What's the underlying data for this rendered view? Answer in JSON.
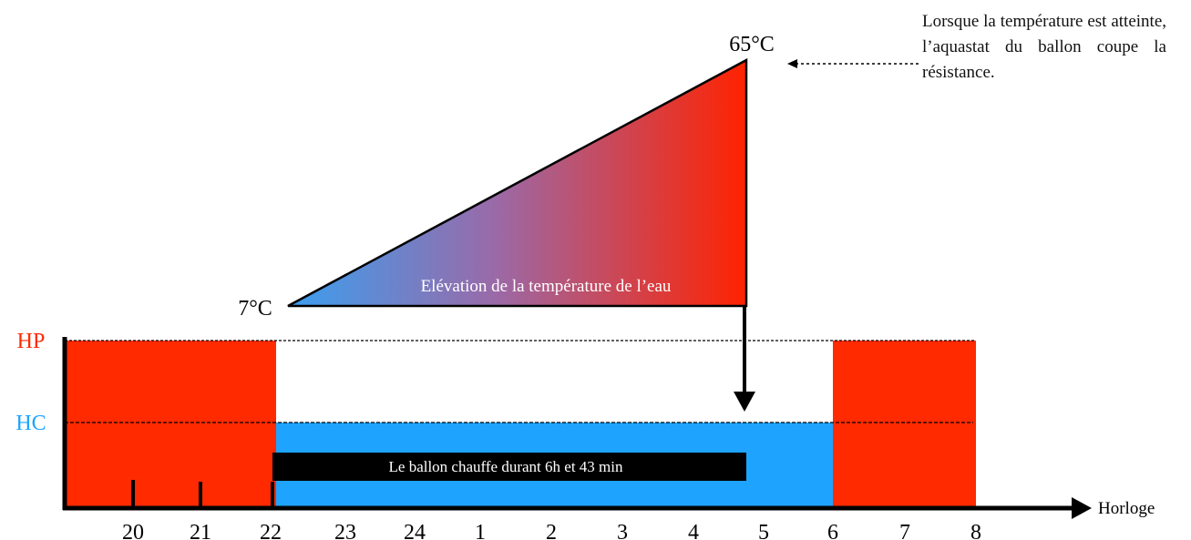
{
  "labels": {
    "temp_high": "65°C",
    "temp_low": "7°C",
    "triangle_caption": "Elévation de la température de l’eau",
    "hp": "HP",
    "hc": "HC",
    "heating_duration": "Le ballon chauffe durant 6h et 43 min",
    "axis_label": "Horloge",
    "aquastat_note": "Lorsque la température est atteinte, l’aquastat du ballon coupe la résistance."
  },
  "hours": [
    "20",
    "21",
    "22",
    "23",
    "24",
    "1",
    "2",
    "3",
    "4",
    "5",
    "6",
    "7",
    "8"
  ],
  "colors": {
    "hp_red": "#ff2a00",
    "hc_blue": "#1ea4ff",
    "gradient_start": "#3a9ff0",
    "gradient_mid": "#9a6aa8",
    "gradient_end": "#ff2200",
    "hp_label": "#ff2a00",
    "hc_label": "#1ea4ff"
  }
}
